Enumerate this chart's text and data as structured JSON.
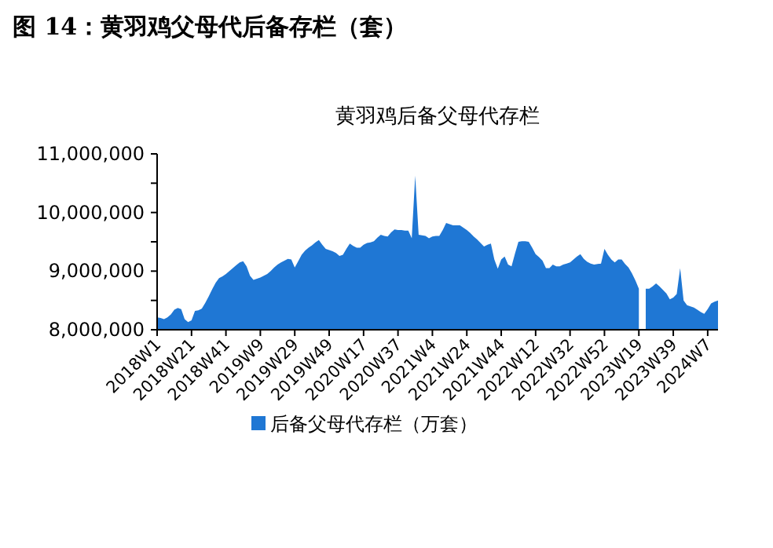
{
  "chart_data": {
    "type": "area",
    "title": "图 14：黄羽鸡父母代后备存栏（套）",
    "subtitle": "黄羽鸡后备父母代存栏",
    "categories": [
      "2018W1",
      null,
      null,
      null,
      null,
      null,
      null,
      null,
      null,
      null,
      "2018W21",
      null,
      null,
      null,
      null,
      null,
      null,
      null,
      null,
      null,
      "2018W41",
      null,
      null,
      null,
      null,
      null,
      null,
      null,
      null,
      null,
      "2019W9",
      null,
      null,
      null,
      null,
      null,
      null,
      null,
      null,
      null,
      "2019W29",
      null,
      null,
      null,
      null,
      null,
      null,
      null,
      null,
      null,
      "2019W49",
      null,
      null,
      null,
      null,
      null,
      null,
      null,
      null,
      null,
      "2020W17",
      null,
      null,
      null,
      null,
      null,
      null,
      null,
      null,
      null,
      "2020W37",
      null,
      null,
      null,
      null,
      null,
      null,
      null,
      null,
      null,
      "2021W4",
      null,
      null,
      null,
      null,
      null,
      null,
      null,
      null,
      null,
      "2021W24",
      null,
      null,
      null,
      null,
      null,
      null,
      null,
      null,
      null,
      "2021W44",
      null,
      null,
      null,
      null,
      null,
      null,
      null,
      null,
      null,
      "2022W12",
      null,
      null,
      null,
      null,
      null,
      null,
      null,
      null,
      null,
      "2022W32",
      null,
      null,
      null,
      null,
      null,
      null,
      null,
      null,
      null,
      "2022W52",
      null,
      null,
      null,
      null,
      null,
      null,
      null,
      null,
      null,
      "2023W19",
      null,
      null,
      null,
      null,
      null,
      null,
      null,
      null,
      null,
      "2023W39",
      null,
      null,
      null,
      null,
      null,
      null,
      null,
      null,
      null,
      "2024W7",
      null,
      null,
      null
    ],
    "ylim": [
      8000000,
      11000000
    ],
    "yticks": [
      {
        "value": 8000000,
        "label": "8,000,000"
      },
      {
        "value": 8500000,
        "label": null
      },
      {
        "value": 9000000,
        "label": "9,000,000"
      },
      {
        "value": 9500000,
        "label": null
      },
      {
        "value": 10000000,
        "label": "10,000,000"
      },
      {
        "value": 10500000,
        "label": null
      },
      {
        "value": 11000000,
        "label": "11,000,000"
      }
    ],
    "legend": "bottom",
    "series": [
      {
        "name": "后备父母代存栏（万套）",
        "color": "#1f77d4",
        "values": [
          8210000,
          8200000,
          8180000,
          8210000,
          8260000,
          8340000,
          8370000,
          8350000,
          8180000,
          8130000,
          8160000,
          8320000,
          8330000,
          8360000,
          8460000,
          8570000,
          8690000,
          8800000,
          8880000,
          8910000,
          8950000,
          9000000,
          9050000,
          9100000,
          9150000,
          9170000,
          9080000,
          8920000,
          8850000,
          8870000,
          8890000,
          8920000,
          8950000,
          9000000,
          9060000,
          9110000,
          9150000,
          9180000,
          9210000,
          9200000,
          9060000,
          9170000,
          9280000,
          9350000,
          9400000,
          9440000,
          9490000,
          9530000,
          9450000,
          9380000,
          9360000,
          9340000,
          9310000,
          9260000,
          9280000,
          9380000,
          9470000,
          9430000,
          9400000,
          9400000,
          9450000,
          9480000,
          9490000,
          9510000,
          9570000,
          9620000,
          9600000,
          9590000,
          9660000,
          9710000,
          9700000,
          9700000,
          9690000,
          9690000,
          9560000,
          10630000,
          9620000,
          9610000,
          9600000,
          9560000,
          9590000,
          9600000,
          9600000,
          9700000,
          9820000,
          9800000,
          9780000,
          9780000,
          9780000,
          9740000,
          9700000,
          9650000,
          9590000,
          9540000,
          9480000,
          9420000,
          9450000,
          9470000,
          9200000,
          9040000,
          9200000,
          9250000,
          9110000,
          9080000,
          9300000,
          9500000,
          9510000,
          9510000,
          9500000,
          9400000,
          9290000,
          9240000,
          9180000,
          9050000,
          9050000,
          9110000,
          9080000,
          9080000,
          9110000,
          9130000,
          9150000,
          9200000,
          9250000,
          9290000,
          9210000,
          9160000,
          9130000,
          9110000,
          9120000,
          9130000,
          9380000,
          9280000,
          9200000,
          9150000,
          9200000,
          9200000,
          9120000,
          9060000,
          8960000,
          8840000,
          8700000,
          null,
          8700000,
          8700000,
          8740000,
          8790000,
          8740000,
          8680000,
          8620000,
          8520000,
          8550000,
          8610000,
          9050000,
          8500000,
          8420000,
          8400000,
          8380000,
          8340000,
          8300000,
          8270000,
          8350000,
          8450000,
          8480000,
          8500000
        ]
      }
    ]
  }
}
